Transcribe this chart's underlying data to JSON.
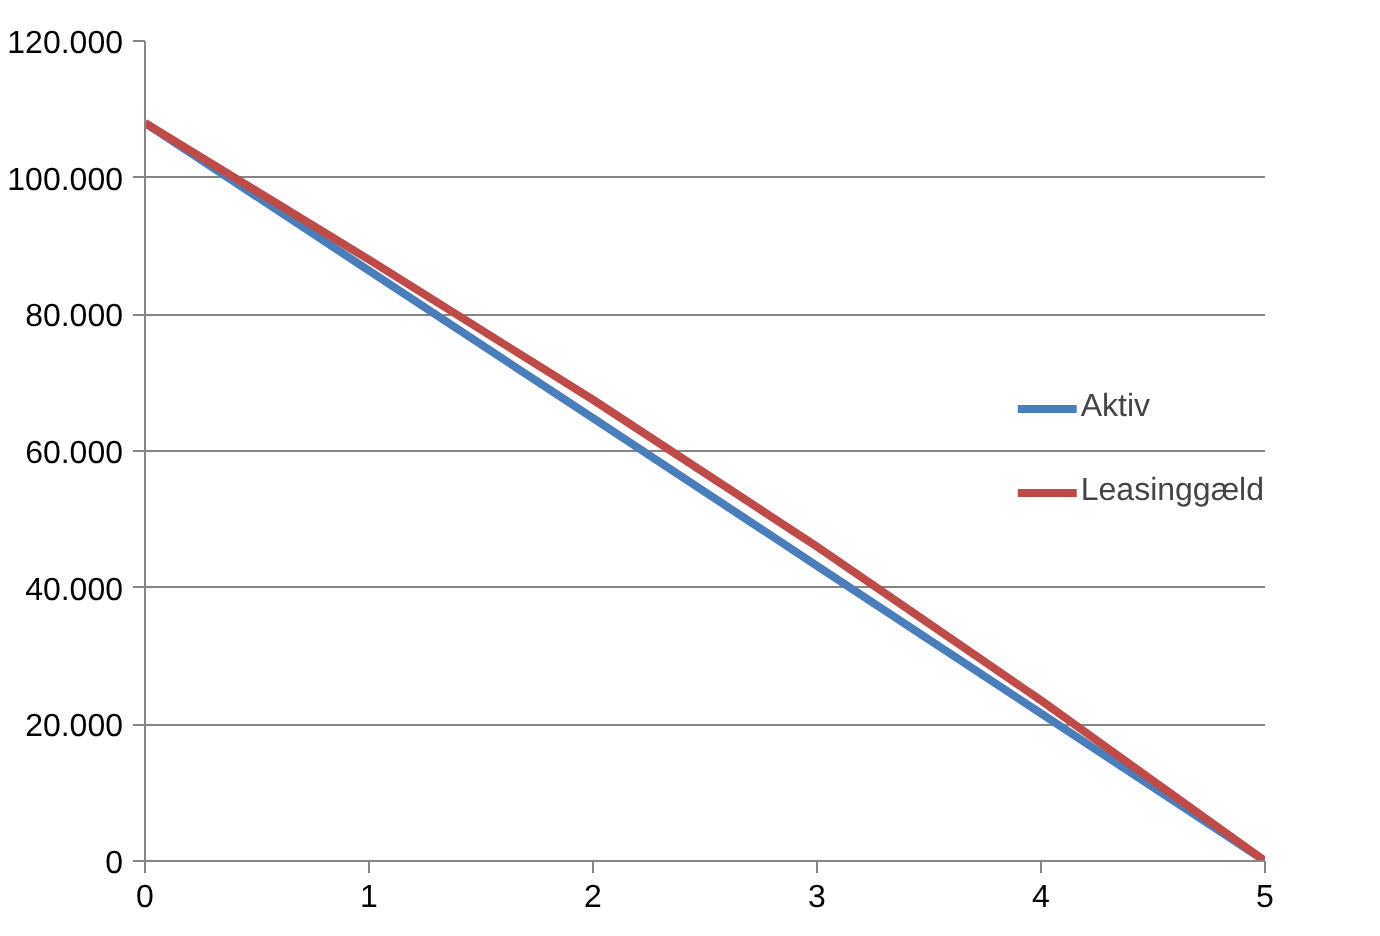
{
  "chart_data": {
    "type": "line",
    "x": [
      0,
      1,
      2,
      3,
      4,
      5
    ],
    "series": [
      {
        "name": "Aktiv",
        "color": "#4a7ebb",
        "values": [
          108000,
          86400,
          64800,
          43200,
          21600,
          0
        ]
      },
      {
        "name": "Leasinggæld",
        "color": "#be4b48",
        "values": [
          108000,
          88000,
          67500,
          46000,
          23500,
          0
        ]
      }
    ],
    "xlim": [
      0,
      5
    ],
    "xticks": [
      0,
      1,
      2,
      3,
      4,
      5
    ],
    "ylim": [
      0,
      120000
    ],
    "yticks": [
      {
        "value": 0,
        "label": "0"
      },
      {
        "value": 20000,
        "label": "20.000"
      },
      {
        "value": 40000,
        "label": "40.000"
      },
      {
        "value": 60000,
        "label": "60.000"
      },
      {
        "value": 80000,
        "label": "80.000"
      },
      {
        "value": 100000,
        "label": "100.000"
      },
      {
        "value": 120000,
        "label": "120.000"
      }
    ],
    "grid": "y",
    "legend": "right",
    "marker": "none",
    "line_style": "solid"
  }
}
